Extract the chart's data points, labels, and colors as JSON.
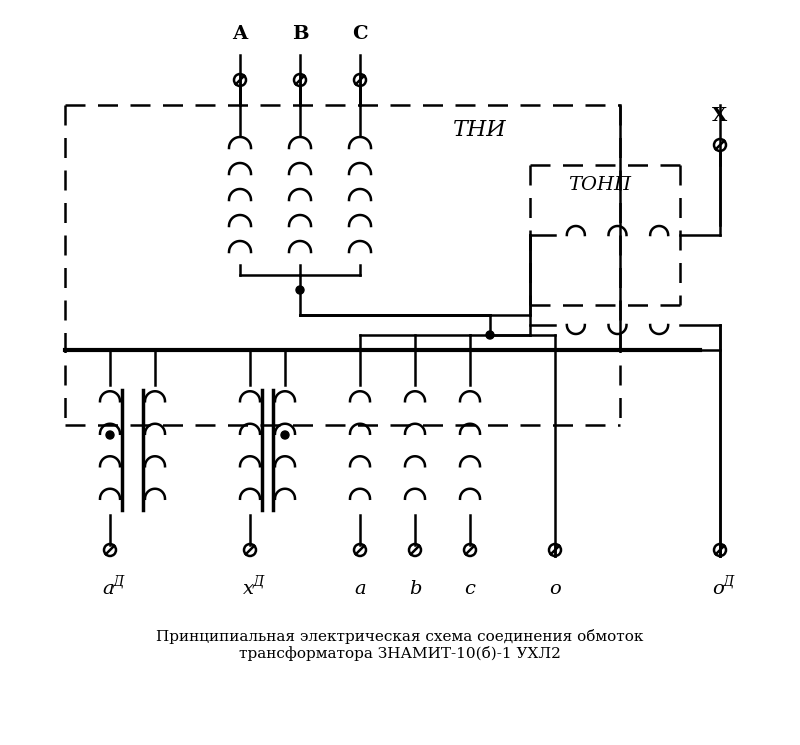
{
  "title": "Принципиальная электрическая схема соединения обмоток\nтрансформатора ЗНАМИТ-10(б)-1 УХЛ2",
  "bg_color": "#ffffff",
  "line_color": "#000000",
  "dashed_color": "#000000",
  "label_A": "A",
  "label_B": "B",
  "label_C": "C",
  "label_X": "X",
  "label_TNI": "ТНИ",
  "label_TONP": "ТОНП",
  "label_aD": "а",
  "label_aD_sub": "Д",
  "label_xD": "х",
  "label_xD_sub": "Д",
  "label_a": "а",
  "label_b": "b",
  "label_c": "с",
  "label_o": "о",
  "label_oD": "о",
  "label_oD_sub": "Д"
}
